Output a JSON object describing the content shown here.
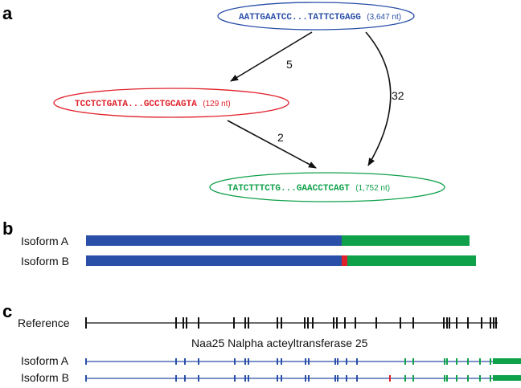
{
  "panels": {
    "a": "a",
    "b": "b",
    "c": "c"
  },
  "colors": {
    "blue": "#2a4fa8",
    "red": "#e0202a",
    "green": "#0fa04a",
    "black": "#111111"
  },
  "nodes": {
    "top": {
      "seq": "AATTGAATCC...TATTCTGAGG",
      "len": "(3,647 nt)",
      "color": "#2a4fa8"
    },
    "left": {
      "seq": "TCCTCTGATA...GCCTGCAGTA",
      "len": "(129 nt)",
      "color": "#e0202a"
    },
    "bottom": {
      "seq": "TATCTTTCTG...GAACCTCAGT",
      "len": "(1,752 nt)",
      "color": "#0fa04a"
    }
  },
  "edges": {
    "top_left": "5",
    "top_bottom": "32",
    "left_bottom": "2"
  },
  "isoforms_b": {
    "a_label": "Isoform A",
    "b_label": "Isoform B"
  },
  "gene_c": {
    "reference_label": "Reference",
    "gene_name": "Naa25 Nalpha acteyltransferase 25",
    "a_label": "Isoform A",
    "b_label": "Isoform B"
  }
}
